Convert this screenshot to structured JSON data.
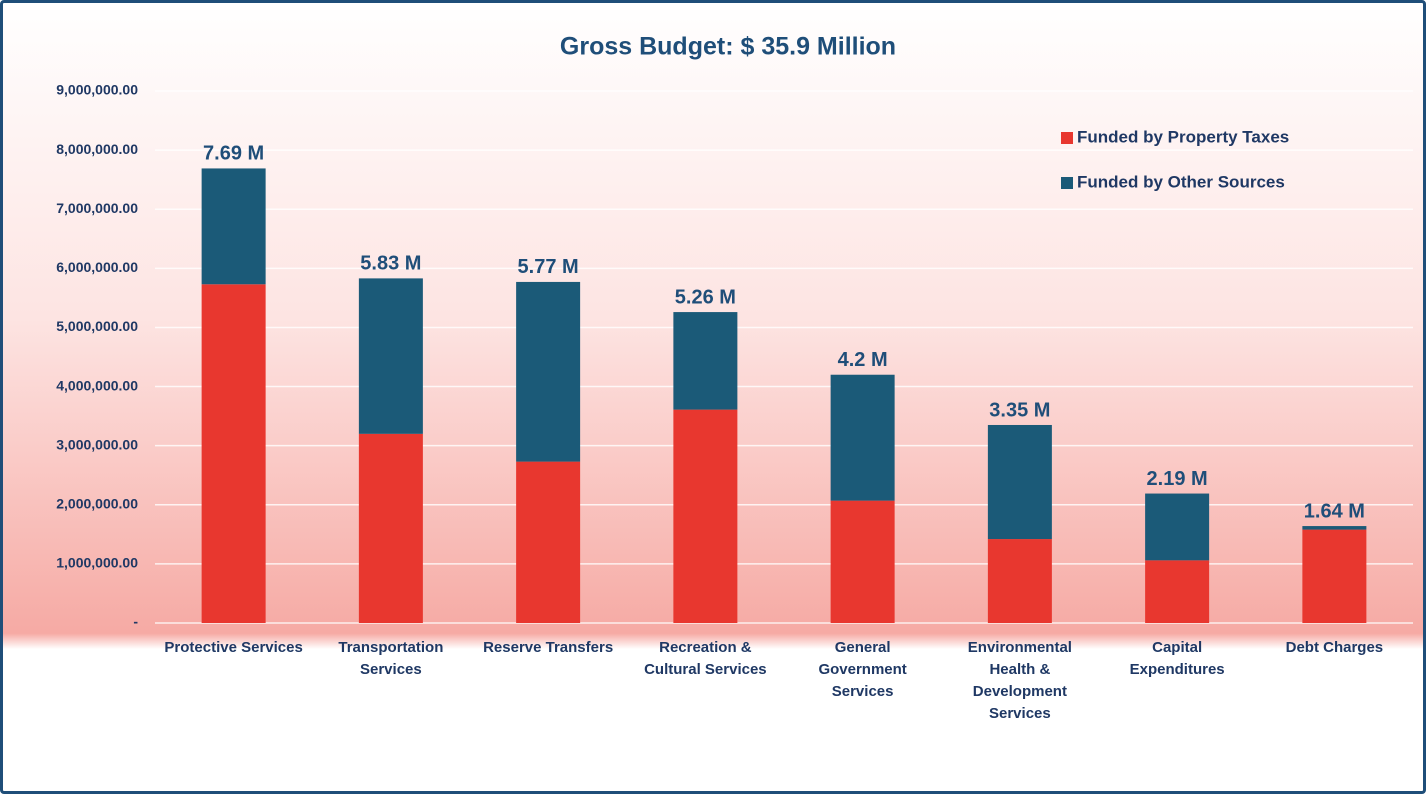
{
  "chart_data": {
    "type": "stacked_bar",
    "title": "Gross Budget: $ 35.9 Million",
    "categories": [
      "Protective Services",
      "Transportation Services",
      "Reserve Transfers",
      "Recreation & Cultural Services",
      "General Government Services",
      "Environmental Health & Development Services",
      "Capital Expenditures",
      "Debt Charges"
    ],
    "series": [
      {
        "name": "Funded by Property Taxes",
        "color": "#e8372f",
        "values": [
          5730000,
          3200000,
          2730000,
          3610000,
          2070000,
          1420000,
          1060000,
          1580000
        ]
      },
      {
        "name": "Funded by Other Sources",
        "color": "#1b5a78",
        "values": [
          1960000,
          2630000,
          3040000,
          1650000,
          2130000,
          1930000,
          1130000,
          60000
        ]
      }
    ],
    "totals": [
      7690000,
      5830000,
      5770000,
      5260000,
      4200000,
      3350000,
      2190000,
      1640000
    ],
    "total_labels": [
      "7.69 M",
      "5.83 M",
      "5.77 M",
      "5.26 M",
      "4.2 M",
      "3.35 M",
      "2.19 M",
      "1.64 M"
    ],
    "ylim": [
      0,
      9000000
    ],
    "yticks": [
      {
        "value": 0,
        "label": "-"
      },
      {
        "value": 1000000,
        "label": "1,000,000.00"
      },
      {
        "value": 2000000,
        "label": "2,000,000.00"
      },
      {
        "value": 3000000,
        "label": "3,000,000.00"
      },
      {
        "value": 4000000,
        "label": "4,000,000.00"
      },
      {
        "value": 5000000,
        "label": "5,000,000.00"
      },
      {
        "value": 6000000,
        "label": "6,000,000.00"
      },
      {
        "value": 7000000,
        "label": "7,000,000.00"
      },
      {
        "value": 8000000,
        "label": "8,000,000.00"
      },
      {
        "value": 9000000,
        "label": "9,000,000.00"
      }
    ],
    "grid": true,
    "legend": "top-right"
  }
}
